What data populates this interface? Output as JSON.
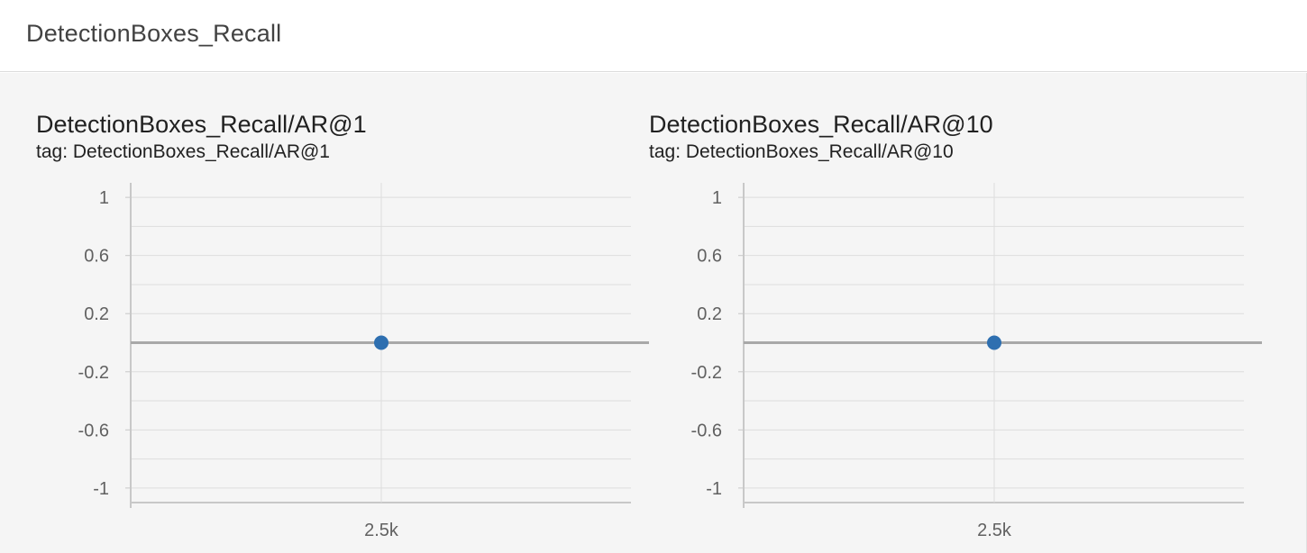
{
  "section": {
    "title": "DetectionBoxes_Recall"
  },
  "colors": {
    "point": "#2e6fb0",
    "zero_line": "#a8a8a8",
    "grid": "#dddddd",
    "axis": "#c8c8c8"
  },
  "chart_data": [
    {
      "type": "scatter",
      "title": "DetectionBoxes_Recall/AR@1",
      "subtitle": "tag: DetectionBoxes_Recall/AR@1",
      "x": [
        2500
      ],
      "series": [
        {
          "values": [
            0
          ]
        }
      ],
      "ylim": [
        -1.1,
        1.1
      ],
      "yticks": [
        "1",
        "0.6",
        "0.2",
        "-0.2",
        "-0.6",
        "-1"
      ],
      "ytick_values": [
        1,
        0.6,
        0.2,
        -0.2,
        -0.6,
        -1
      ],
      "xticks": [
        "2.5k"
      ],
      "xtick_values": [
        2500
      ],
      "grid": true
    },
    {
      "type": "scatter",
      "title": "DetectionBoxes_Recall/AR@10",
      "subtitle": "tag: DetectionBoxes_Recall/AR@10",
      "x": [
        2500
      ],
      "series": [
        {
          "values": [
            0
          ]
        }
      ],
      "ylim": [
        -1.1,
        1.1
      ],
      "yticks": [
        "1",
        "0.6",
        "0.2",
        "-0.2",
        "-0.6",
        "-1"
      ],
      "ytick_values": [
        1,
        0.6,
        0.2,
        -0.2,
        -0.6,
        -1
      ],
      "xticks": [
        "2.5k"
      ],
      "xtick_values": [
        2500
      ],
      "grid": true
    }
  ]
}
